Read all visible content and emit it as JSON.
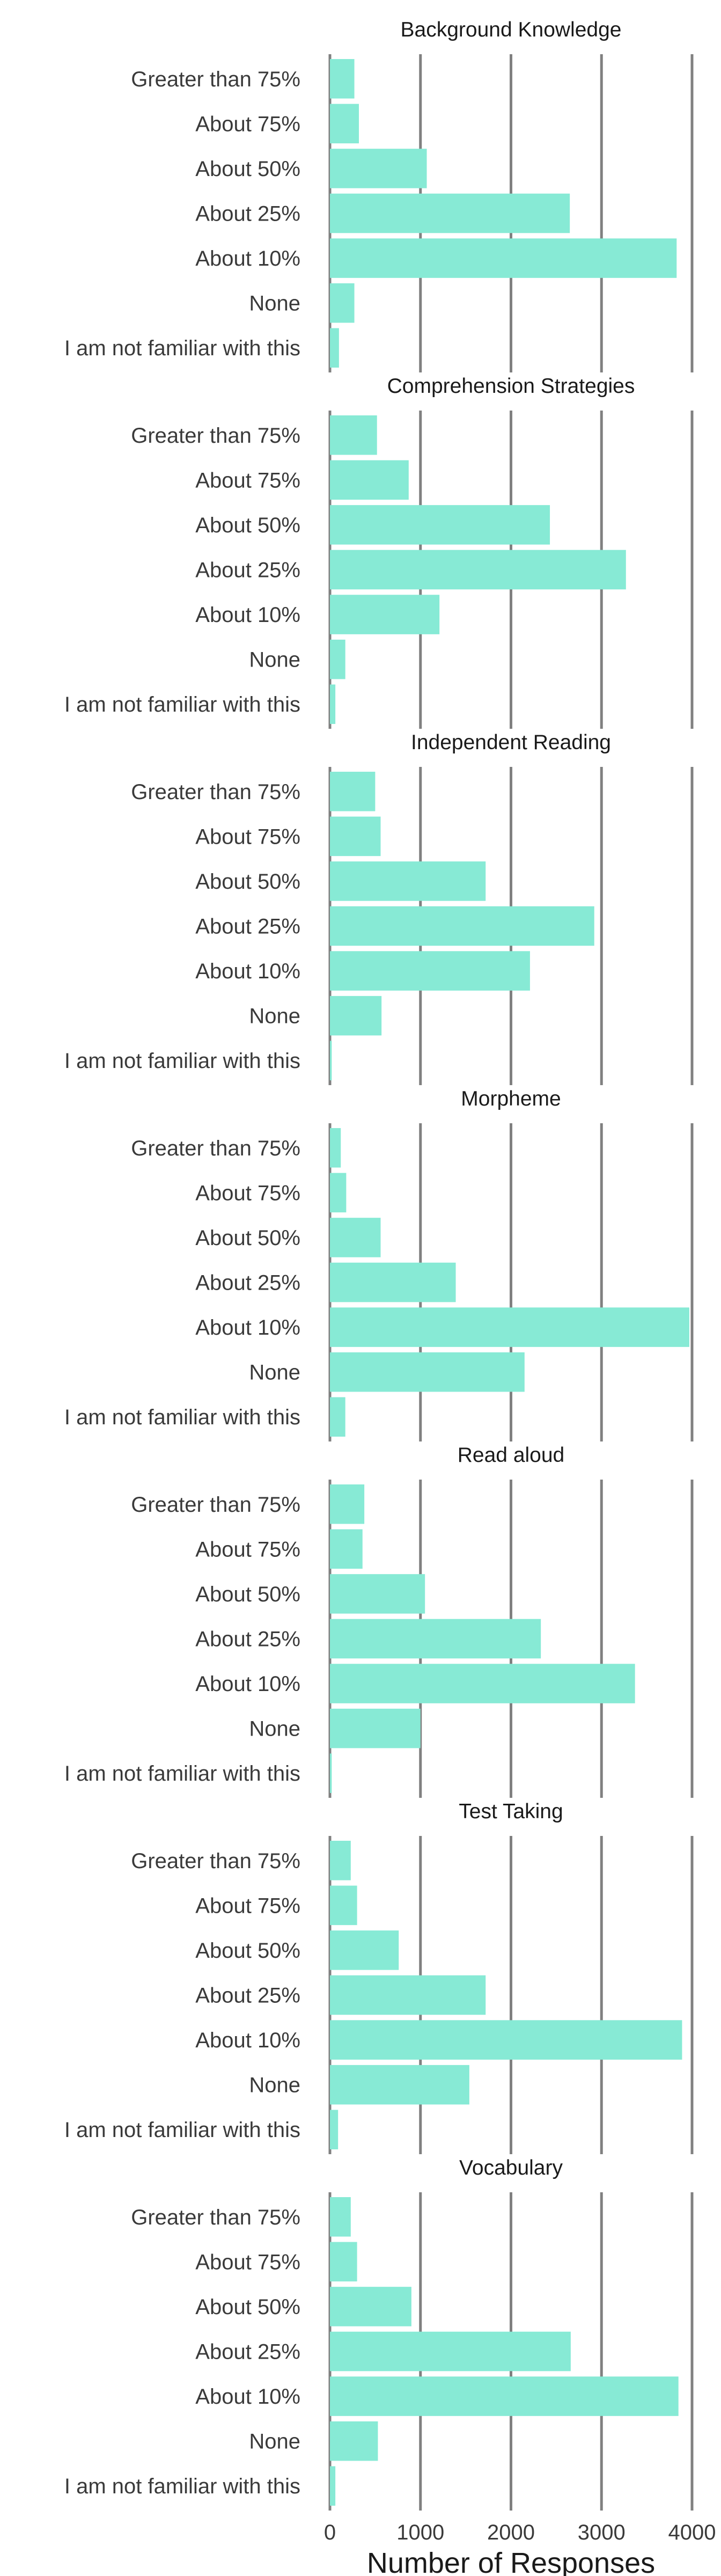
{
  "chart_data": {
    "type": "bar",
    "orientation": "horizontal",
    "layout": "7 stacked facets sharing the x axis",
    "xlabel": "Number of Responses",
    "xlim": [
      0,
      4000
    ],
    "xticks": [
      0,
      1000,
      2000,
      3000,
      4000
    ],
    "grid": "vertical",
    "bar_color": "#87ead5",
    "grid_color": "#808080",
    "categories": [
      "Greater than 75%",
      "About 75%",
      "About 50%",
      "About 25%",
      "About 10%",
      "None",
      "I am not familiar with this"
    ],
    "panels": [
      {
        "title": "Background Knowledge",
        "values": [
          270,
          320,
          1070,
          2650,
          3830,
          270,
          100
        ]
      },
      {
        "title": "Comprehension Strategies",
        "values": [
          520,
          870,
          2430,
          3270,
          1210,
          170,
          60
        ]
      },
      {
        "title": "Independent Reading",
        "values": [
          500,
          560,
          1720,
          2920,
          2210,
          570,
          20
        ]
      },
      {
        "title": "Morpheme",
        "values": [
          120,
          180,
          560,
          1390,
          3970,
          2150,
          170
        ]
      },
      {
        "title": "Read aloud",
        "values": [
          380,
          360,
          1050,
          2330,
          3370,
          1000,
          20
        ]
      },
      {
        "title": "Test Taking",
        "values": [
          230,
          300,
          760,
          1720,
          3890,
          1540,
          90
        ]
      },
      {
        "title": "Vocabulary",
        "values": [
          230,
          300,
          900,
          2660,
          3850,
          530,
          60
        ]
      }
    ]
  }
}
